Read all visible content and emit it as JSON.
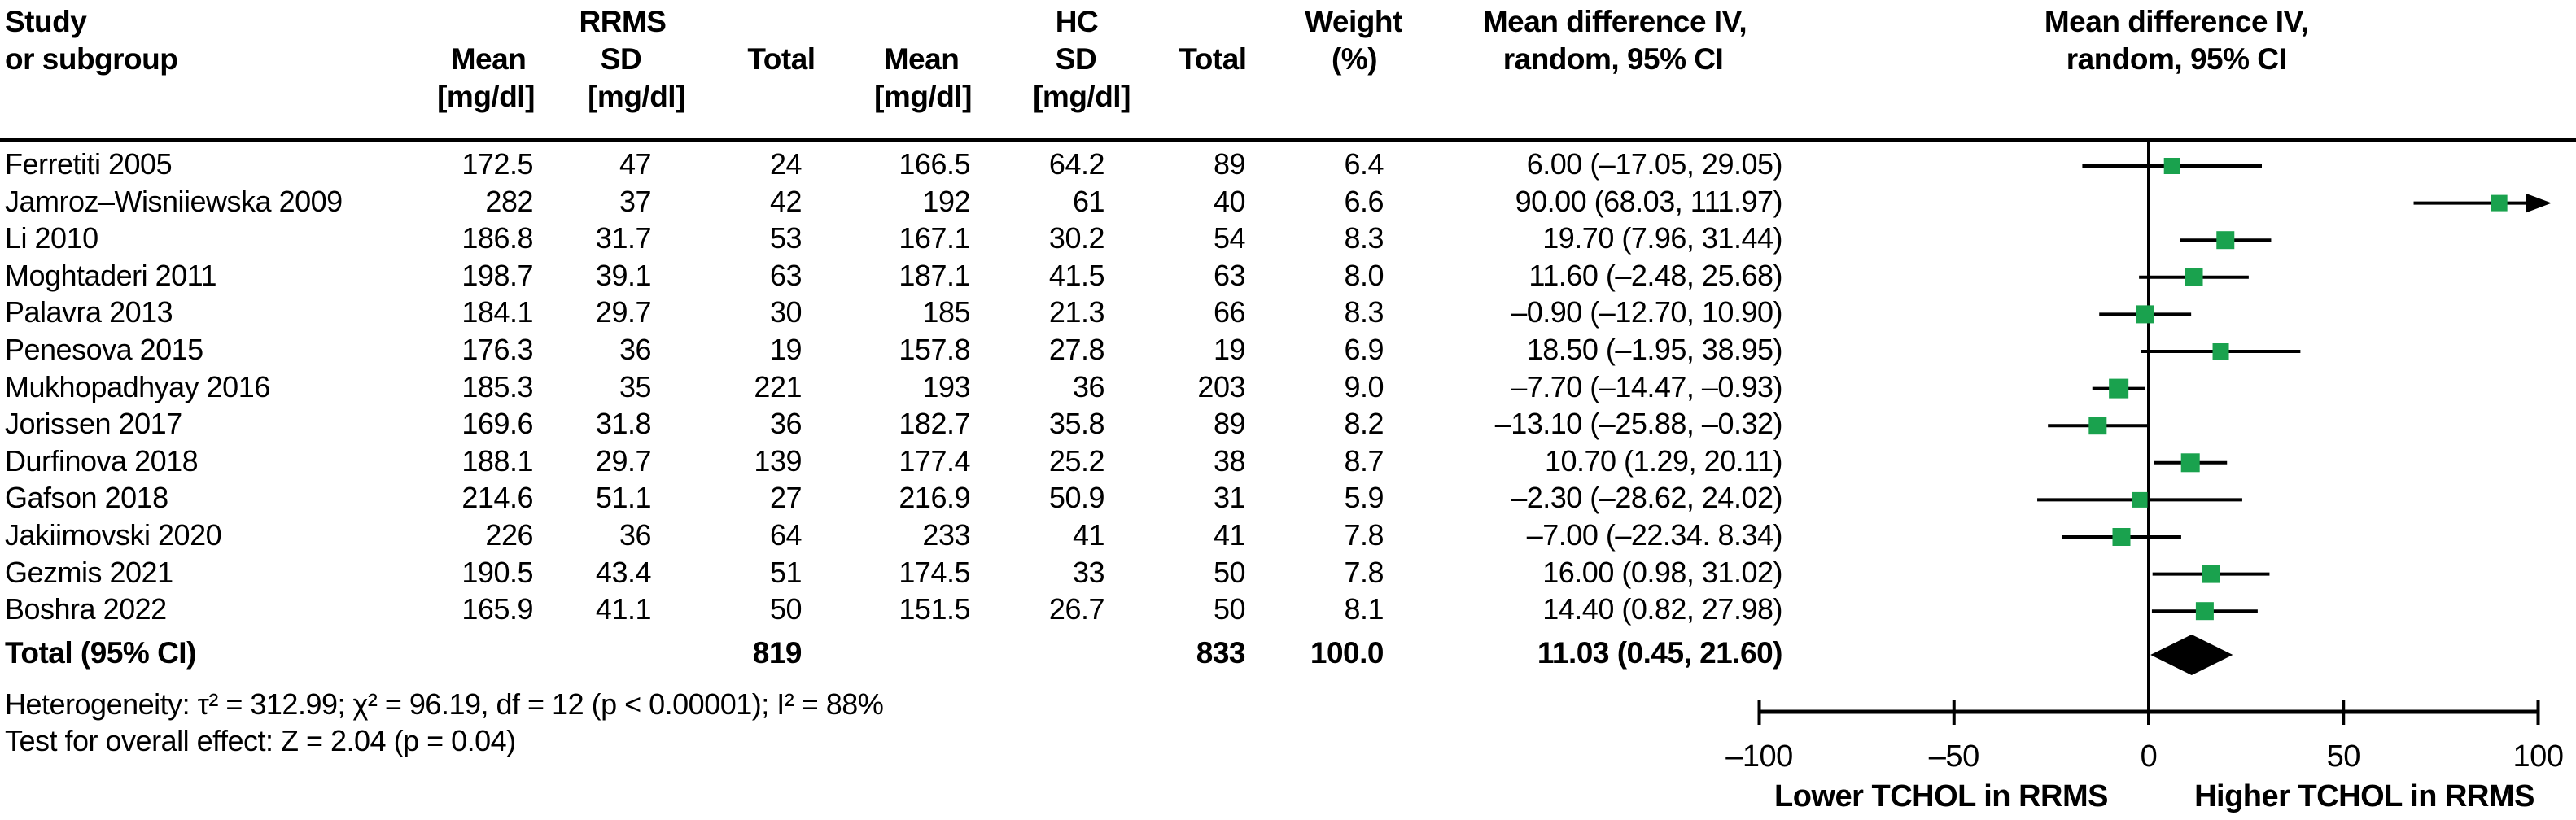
{
  "header": {
    "study_line1": "Study",
    "study_line2": "or subgroup",
    "group1": "RRMS",
    "group2": "HC",
    "mean_label": "Mean",
    "sd_label": "SD",
    "total_label": "Total",
    "unit_label": "[mg/dl]",
    "weight_line1": "Weight",
    "weight_line2": "(%)",
    "md_line1": "Mean difference IV,",
    "md_line2": "random, 95% CI"
  },
  "plot": {
    "header_line1": "Mean difference IV,",
    "header_line2": "random, 95% CI",
    "xlabel_left": "Lower TCHOL in RRMS",
    "xlabel_right": "Higher TCHOL in RRMS",
    "marker_color": "#1aa24e",
    "line_color": "#000000"
  },
  "footer": {
    "heterogeneity": "Heterogeneity: τ² = 312.99; χ² = 96.19, df = 12 (p < 0.00001); I² = 88%",
    "overall_effect": "Test for overall effect: Z = 2.04 (p = 0.04)"
  },
  "chart_data": {
    "type": "forest",
    "xlim": [
      -100,
      100
    ],
    "x_ticks": [
      -100,
      -50,
      0,
      50,
      100
    ],
    "x_tick_labels": [
      "–100",
      "–50",
      "0",
      "50",
      "100"
    ],
    "studies": [
      {
        "name": "Ferretiti 2005",
        "rrms_mean": "172.5",
        "rrms_sd": "47",
        "rrms_total": "24",
        "hc_mean": "166.5",
        "hc_sd": "64.2",
        "hc_total": "89",
        "weight": "6.4",
        "ci_text": "6.00 (–17.05, 29.05)",
        "md": 6.0,
        "lo": -17.05,
        "hi": 29.05
      },
      {
        "name": "Jamroz–Wisniiewska 2009",
        "rrms_mean": "282",
        "rrms_sd": "37",
        "rrms_total": "42",
        "hc_mean": "192",
        "hc_sd": "61",
        "hc_total": "40",
        "weight": "6.6",
        "ci_text": "90.00 (68.03, 111.97)",
        "md": 90.0,
        "lo": 68.03,
        "hi": 111.97
      },
      {
        "name": "Li 2010",
        "rrms_mean": "186.8",
        "rrms_sd": "31.7",
        "rrms_total": "53",
        "hc_mean": "167.1",
        "hc_sd": "30.2",
        "hc_total": "54",
        "weight": "8.3",
        "ci_text": "19.70 (7.96, 31.44)",
        "md": 19.7,
        "lo": 7.96,
        "hi": 31.44
      },
      {
        "name": "Moghtaderi 2011",
        "rrms_mean": "198.7",
        "rrms_sd": "39.1",
        "rrms_total": "63",
        "hc_mean": "187.1",
        "hc_sd": "41.5",
        "hc_total": "63",
        "weight": "8.0",
        "ci_text": "11.60 (–2.48, 25.68)",
        "md": 11.6,
        "lo": -2.48,
        "hi": 25.68
      },
      {
        "name": "Palavra 2013",
        "rrms_mean": "184.1",
        "rrms_sd": "29.7",
        "rrms_total": "30",
        "hc_mean": "185",
        "hc_sd": "21.3",
        "hc_total": "66",
        "weight": "8.3",
        "ci_text": "–0.90 (–12.70, 10.90)",
        "md": -0.9,
        "lo": -12.7,
        "hi": 10.9
      },
      {
        "name": "Penesova 2015",
        "rrms_mean": "176.3",
        "rrms_sd": "36",
        "rrms_total": "19",
        "hc_mean": "157.8",
        "hc_sd": "27.8",
        "hc_total": "19",
        "weight": "6.9",
        "ci_text": "18.50 (–1.95, 38.95)",
        "md": 18.5,
        "lo": -1.95,
        "hi": 38.95
      },
      {
        "name": "Mukhopadhyay 2016",
        "rrms_mean": "185.3",
        "rrms_sd": "35",
        "rrms_total": "221",
        "hc_mean": "193",
        "hc_sd": "36",
        "hc_total": "203",
        "weight": "9.0",
        "ci_text": "–7.70 (–14.47, –0.93)",
        "md": -7.7,
        "lo": -14.47,
        "hi": -0.93
      },
      {
        "name": "Jorissen 2017",
        "rrms_mean": "169.6",
        "rrms_sd": "31.8",
        "rrms_total": "36",
        "hc_mean": "182.7",
        "hc_sd": "35.8",
        "hc_total": "89",
        "weight": "8.2",
        "ci_text": "–13.10 (–25.88, –0.32)",
        "md": -13.1,
        "lo": -25.88,
        "hi": -0.32
      },
      {
        "name": "Durfinova 2018",
        "rrms_mean": "188.1",
        "rrms_sd": "29.7",
        "rrms_total": "139",
        "hc_mean": "177.4",
        "hc_sd": "25.2",
        "hc_total": "38",
        "weight": "8.7",
        "ci_text": "10.70 (1.29, 20.11)",
        "md": 10.7,
        "lo": 1.29,
        "hi": 20.11
      },
      {
        "name": "Gafson 2018",
        "rrms_mean": "214.6",
        "rrms_sd": "51.1",
        "rrms_total": "27",
        "hc_mean": "216.9",
        "hc_sd": "50.9",
        "hc_total": "31",
        "weight": "5.9",
        "ci_text": "–2.30 (–28.62, 24.02)",
        "md": -2.3,
        "lo": -28.62,
        "hi": 24.02
      },
      {
        "name": "Jakiimovski 2020",
        "rrms_mean": "226",
        "rrms_sd": "36",
        "rrms_total": "64",
        "hc_mean": "233",
        "hc_sd": "41",
        "hc_total": "41",
        "weight": "7.8",
        "ci_text": "–7.00 (–22.34. 8.34)",
        "md": -7.0,
        "lo": -22.34,
        "hi": 8.34
      },
      {
        "name": "Gezmis 2021",
        "rrms_mean": "190.5",
        "rrms_sd": "43.4",
        "rrms_total": "51",
        "hc_mean": "174.5",
        "hc_sd": "33",
        "hc_total": "50",
        "weight": "7.8",
        "ci_text": "16.00 (0.98, 31.02)",
        "md": 16.0,
        "lo": 0.98,
        "hi": 31.02
      },
      {
        "name": "Boshra 2022",
        "rrms_mean": "165.9",
        "rrms_sd": "41.1",
        "rrms_total": "50",
        "hc_mean": "151.5",
        "hc_sd": "26.7",
        "hc_total": "50",
        "weight": "8.1",
        "ci_text": "14.40 (0.82, 27.98)",
        "md": 14.4,
        "lo": 0.82,
        "hi": 27.98
      }
    ],
    "total": {
      "label": "Total (95% CI)",
      "rrms_total": "819",
      "hc_total": "833",
      "weight": "100.0",
      "ci_text": "11.03 (0.45, 21.60)",
      "md": 11.03,
      "lo": 0.45,
      "hi": 21.6
    }
  }
}
